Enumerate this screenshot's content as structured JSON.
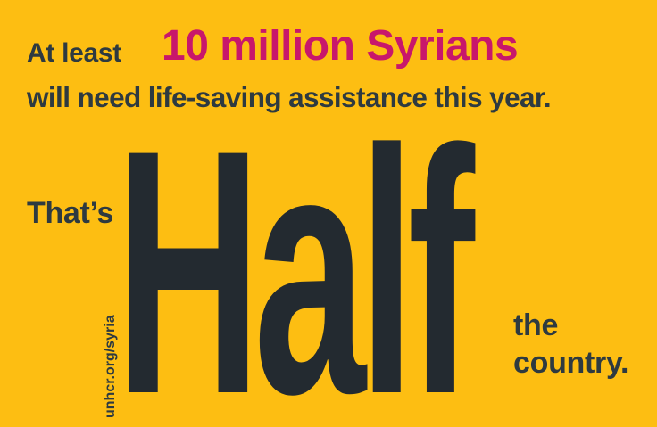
{
  "poster": {
    "line1_lead": "At least",
    "line1_highlight": "10 million Syrians",
    "line2": "will need life-saving assistance this year.",
    "thats": "That’s",
    "half": "Half",
    "tail_line1": "the",
    "tail_line2": "country.",
    "url": "unhcr.org/syria"
  },
  "colors": {
    "background": "#FDBE12",
    "text_dark": "#2E3A40",
    "highlight": "#C8176B",
    "half_text": "#232A30"
  }
}
